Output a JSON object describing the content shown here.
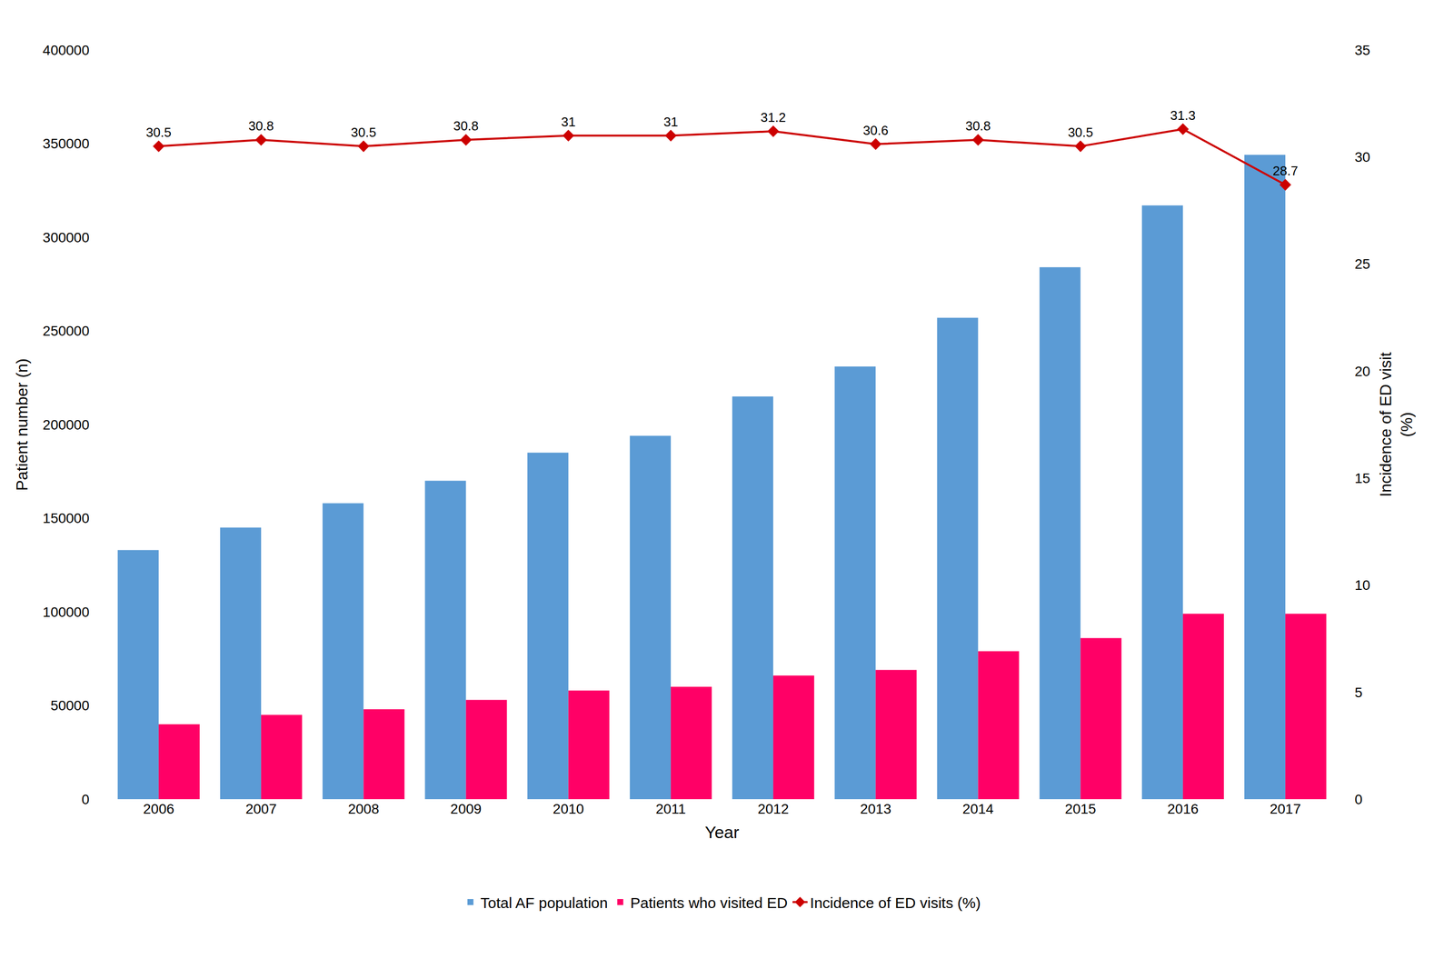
{
  "chart_data": {
    "type": "bar",
    "categories": [
      "2006",
      "2007",
      "2008",
      "2009",
      "2010",
      "2011",
      "2012",
      "2013",
      "2014",
      "2015",
      "2016",
      "2017"
    ],
    "series": [
      {
        "name": "Total AF population",
        "type": "bar",
        "color": "#5B9BD5",
        "values": [
          133000,
          145000,
          158000,
          170000,
          185000,
          194000,
          215000,
          231000,
          257000,
          284000,
          317000,
          344000
        ]
      },
      {
        "name": "Patients who visited ED",
        "type": "bar",
        "color": "#FF0066",
        "values": [
          40000,
          45000,
          48000,
          53000,
          58000,
          60000,
          66000,
          69000,
          79000,
          86000,
          99000,
          99000
        ]
      },
      {
        "name": "Incidence of ED visits (%)",
        "type": "line",
        "axis": "y2",
        "color": "#CC0000",
        "marker": "diamond",
        "line_style": "solid",
        "data_labels": true,
        "values": [
          30.5,
          30.8,
          30.5,
          30.8,
          31.0,
          31.0,
          31.2,
          30.6,
          30.8,
          30.5,
          31.3,
          28.7
        ],
        "value_labels": [
          "30.5",
          "30.8",
          "30.5",
          "30.8",
          "31",
          "31",
          "31.2",
          "30.6",
          "30.8",
          "30.5",
          "31.3",
          "28.7"
        ]
      }
    ],
    "xlabel": "Year",
    "ylabel": "Patient number (n)",
    "y2label": "Incidence of ED visit\n(%)",
    "ylim": [
      0,
      400000
    ],
    "yticks": [
      0,
      50000,
      100000,
      150000,
      200000,
      250000,
      300000,
      350000,
      400000
    ],
    "y2lim": [
      0,
      35
    ],
    "y2ticks": [
      0,
      5,
      10,
      15,
      20,
      25,
      30,
      35
    ],
    "grid": false,
    "legend": "bottom"
  }
}
